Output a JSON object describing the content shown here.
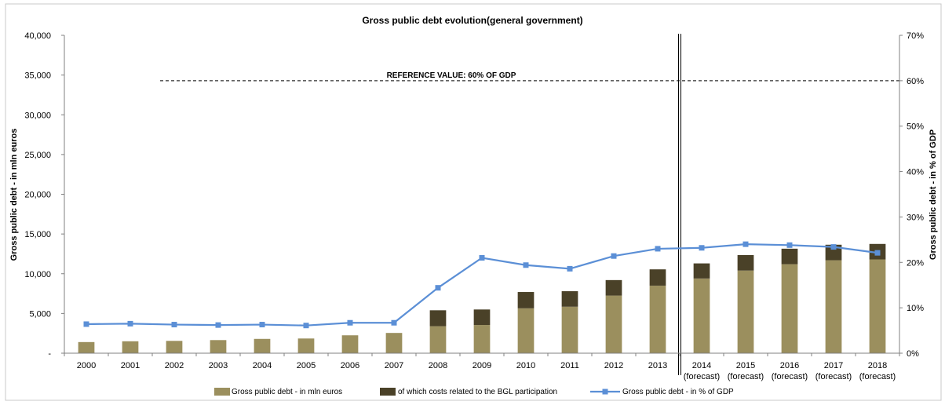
{
  "chart_data": {
    "type": "bar",
    "title": "Gross public debt evolution(general government)",
    "categories": [
      [
        "2000"
      ],
      [
        "2001"
      ],
      [
        "2002"
      ],
      [
        "2003"
      ],
      [
        "2004"
      ],
      [
        "2005"
      ],
      [
        "2006"
      ],
      [
        "2007"
      ],
      [
        "2008"
      ],
      [
        "2009"
      ],
      [
        "2010"
      ],
      [
        "2011"
      ],
      [
        "2012"
      ],
      [
        "2013"
      ],
      [
        "2014",
        "(forecast)"
      ],
      [
        "2015",
        "(forecast)"
      ],
      [
        "2016",
        "(forecast)"
      ],
      [
        "2017",
        "(forecast)"
      ],
      [
        "2018",
        "(forecast)"
      ]
    ],
    "ylabel": "Gross  public debt - in mln euros",
    "y2label": "Gross  public debt - in % of GDP",
    "ylim": [
      0,
      40000
    ],
    "y2lim": [
      0,
      70
    ],
    "yticks": [
      "-",
      "5,000",
      "10,000",
      "15,000",
      "20,000",
      "25,000",
      "30,000",
      "35,000",
      "40,000"
    ],
    "y2ticks": [
      "0%",
      "10%",
      "20%",
      "30%",
      "40%",
      "50%",
      "60%",
      "70%"
    ],
    "series": [
      {
        "name": "Gross public debt - in mln euros",
        "type": "bar",
        "color": "#9b8f5e",
        "values": [
          1400,
          1500,
          1550,
          1650,
          1800,
          1850,
          2250,
          2550,
          3400,
          3550,
          5650,
          5850,
          7250,
          8500,
          9400,
          10400,
          11200,
          11700,
          11800
        ]
      },
      {
        "name": "of which costs related to the BGL participation",
        "type": "bar-stack",
        "color": "#4a4128",
        "values": [
          0,
          0,
          0,
          0,
          0,
          0,
          0,
          0,
          2000,
          1950,
          2050,
          1950,
          1950,
          2050,
          1900,
          1950,
          1950,
          1950,
          1950
        ]
      },
      {
        "name": "Gross public debt - in % of GDP",
        "type": "line",
        "axis": "right",
        "color": "#5b8fd6",
        "values": [
          6.4,
          6.5,
          6.3,
          6.2,
          6.3,
          6.1,
          6.7,
          6.7,
          14.4,
          21.0,
          19.4,
          18.6,
          21.4,
          23.0,
          23.2,
          24.0,
          23.8,
          23.4,
          22.1
        ]
      }
    ],
    "reference": {
      "label": "REFERENCE VALUE: 60% OF GDP",
      "value": 60
    },
    "forecast_divider_after": "2013",
    "legend_position": "bottom"
  }
}
